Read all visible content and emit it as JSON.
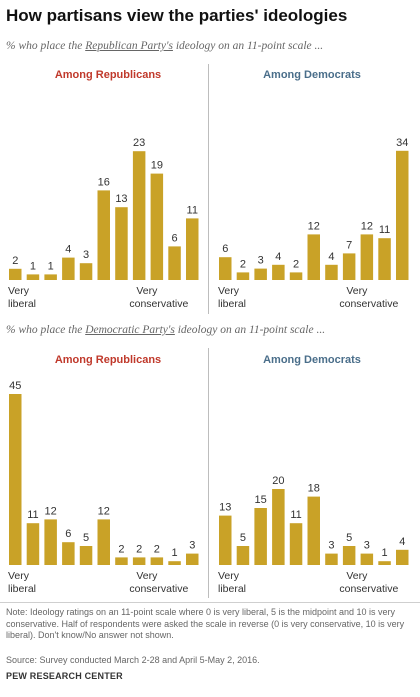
{
  "title": "How partisans view the parties' ideologies",
  "subtitle_republican": {
    "before": "% who place the ",
    "party": "Republican Party's",
    "after": " ideology on an 11-point scale ..."
  },
  "subtitle_democratic": {
    "before": "% who place the ",
    "party": "Democratic Party's",
    "after": " ideology on an 11-point scale ..."
  },
  "colors": {
    "bar": "#c9a227",
    "republicans_title": "#c0392b",
    "democrats_title": "#4a6e8a"
  },
  "chart_data": [
    {
      "type": "bar",
      "title": "Among Republicans",
      "subject": "Republican Party",
      "categories": [
        "0",
        "1",
        "2",
        "3",
        "4",
        "5",
        "6",
        "7",
        "8",
        "9",
        "10"
      ],
      "values": [
        2,
        1,
        1,
        4,
        3,
        16,
        13,
        23,
        19,
        6,
        11
      ],
      "left_label": [
        "Very",
        "liberal"
      ],
      "right_label": [
        "Very",
        "conservative"
      ]
    },
    {
      "type": "bar",
      "title": "Among Democrats",
      "subject": "Republican Party",
      "categories": [
        "0",
        "1",
        "2",
        "3",
        "4",
        "5",
        "6",
        "7",
        "8",
        "9",
        "10"
      ],
      "values": [
        6,
        2,
        3,
        4,
        2,
        12,
        4,
        7,
        12,
        11,
        34
      ],
      "left_label": [
        "Very",
        "liberal"
      ],
      "right_label": [
        "Very",
        "conservative"
      ]
    },
    {
      "type": "bar",
      "title": "Among Republicans",
      "subject": "Democratic Party",
      "categories": [
        "0",
        "1",
        "2",
        "3",
        "4",
        "5",
        "6",
        "7",
        "8",
        "9",
        "10"
      ],
      "values": [
        45,
        11,
        12,
        6,
        5,
        12,
        2,
        2,
        2,
        1,
        3
      ],
      "left_label": [
        "Very",
        "liberal"
      ],
      "right_label": [
        "Very",
        "conservative"
      ]
    },
    {
      "type": "bar",
      "title": "Among Democrats",
      "subject": "Democratic Party",
      "categories": [
        "0",
        "1",
        "2",
        "3",
        "4",
        "5",
        "6",
        "7",
        "8",
        "9",
        "10"
      ],
      "values": [
        13,
        5,
        15,
        20,
        11,
        18,
        3,
        5,
        3,
        1,
        4
      ],
      "left_label": [
        "Very",
        "liberal"
      ],
      "right_label": [
        "Very",
        "conservative"
      ]
    }
  ],
  "note": "Note: Ideology ratings on an 11-point scale where 0 is very liberal, 5 is the midpoint and 10 is very conservative.  Half of respondents were asked the scale in reverse (0 is very conservative, 10 is very liberal). Don't know/No answer not shown.",
  "source": "Source: Survey conducted March 2-28 and April 5-May 2, 2016.",
  "brand": "PEW RESEARCH CENTER"
}
